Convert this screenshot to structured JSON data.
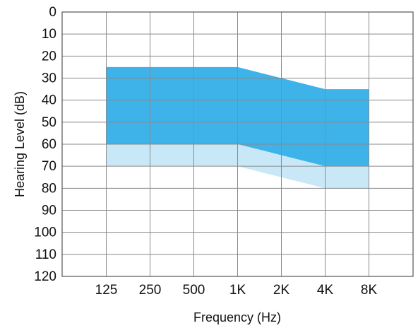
{
  "chart_data": {
    "type": "area",
    "title": "",
    "xlabel": "Frequency (Hz)",
    "ylabel": "Hearing Level (dB)",
    "x_categories": [
      "125",
      "250",
      "500",
      "1K",
      "2K",
      "4K",
      "8K"
    ],
    "y_ticks": [
      "0",
      "10",
      "20",
      "30",
      "40",
      "50",
      "60",
      "70",
      "80",
      "90",
      "100",
      "110",
      "120"
    ],
    "ylim": [
      0,
      120
    ],
    "y_inverted": true,
    "grid": true,
    "series": [
      {
        "color": "#3db3ea",
        "upper_db": [
          25,
          25,
          25,
          25,
          30,
          35,
          35
        ],
        "lower_db": [
          60,
          60,
          60,
          60,
          65,
          70,
          70
        ]
      },
      {
        "color": "#c8e8f8",
        "upper_db": [
          60,
          60,
          60,
          60,
          65,
          70,
          70
        ],
        "lower_db": [
          70,
          70,
          70,
          70,
          75,
          80,
          80
        ]
      }
    ]
  }
}
